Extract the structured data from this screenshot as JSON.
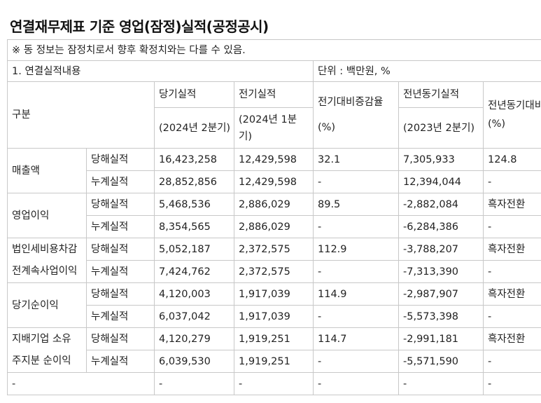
{
  "title": "연결재무제표 기준 영업(잠정)실적(공정공시)",
  "notice": "※ 동 정보는 잠정치로서 향후 확정치와는 다를 수 있음.",
  "section_label": "1. 연결실적내용",
  "unit_label": "단위 : 백만원, %",
  "headers": {
    "category": "구분",
    "current": "당기실적",
    "current_period": "(2024년 2분기)",
    "previous": "전기실적",
    "previous_period": "(2024년 1분기)",
    "qoq_change": "전기대비증감율",
    "qoq_unit": "(%)",
    "yoy": "전년동기실적",
    "yoy_period": "(2023년 2분기)",
    "yoy_change": "전년동기대비증감율(%)"
  },
  "rows": [
    {
      "name": "매출액",
      "sub": [
        {
          "type": "당해실적",
          "current": "16,423,258",
          "previous": "12,429,598",
          "qoq": "32.1",
          "yoy": "7,305,933",
          "yoy_change": "124.8"
        },
        {
          "type": "누계실적",
          "current": "28,852,856",
          "previous": "12,429,598",
          "qoq": "-",
          "yoy": "12,394,044",
          "yoy_change": "-"
        }
      ]
    },
    {
      "name": "영업이익",
      "sub": [
        {
          "type": "당해실적",
          "current": "5,468,536",
          "previous": "2,886,029",
          "qoq": "89.5",
          "yoy": "-2,882,084",
          "yoy_change": "흑자전환"
        },
        {
          "type": "누계실적",
          "current": "8,354,565",
          "previous": "2,886,029",
          "qoq": "-",
          "yoy": "-6,284,386",
          "yoy_change": "-"
        }
      ]
    },
    {
      "name_line1": "법인세비용차감",
      "name_line2": "전계속사업이익",
      "sub": [
        {
          "type": "당해실적",
          "current": "5,052,187",
          "previous": "2,372,575",
          "qoq": "112.9",
          "yoy": "-3,788,207",
          "yoy_change": "흑자전환"
        },
        {
          "type": "누계실적",
          "current": "7,424,762",
          "previous": "2,372,575",
          "qoq": "-",
          "yoy": "-7,313,390",
          "yoy_change": "-"
        }
      ]
    },
    {
      "name": "당기순이익",
      "sub": [
        {
          "type": "당해실적",
          "current": "4,120,003",
          "previous": "1,917,039",
          "qoq": "114.9",
          "yoy": "-2,987,907",
          "yoy_change": "흑자전환"
        },
        {
          "type": "누계실적",
          "current": "6,037,042",
          "previous": "1,917,039",
          "qoq": "-",
          "yoy": "-5,573,398",
          "yoy_change": "-"
        }
      ]
    },
    {
      "name_line1": "지배기업 소유",
      "name_line2": "주지분 순이익",
      "sub": [
        {
          "type": "당해실적",
          "current": "4,120,279",
          "previous": "1,919,251",
          "qoq": "114.7",
          "yoy": "-2,991,181",
          "yoy_change": "흑자전환"
        },
        {
          "type": "누계실적",
          "current": "6,039,530",
          "previous": "1,919,251",
          "qoq": "-",
          "yoy": "-5,571,590",
          "yoy_change": "-"
        }
      ]
    }
  ],
  "last_row": {
    "c1": "-",
    "c3": "-",
    "c4": "-",
    "c5": "-",
    "c6": "-",
    "c7": "-"
  }
}
